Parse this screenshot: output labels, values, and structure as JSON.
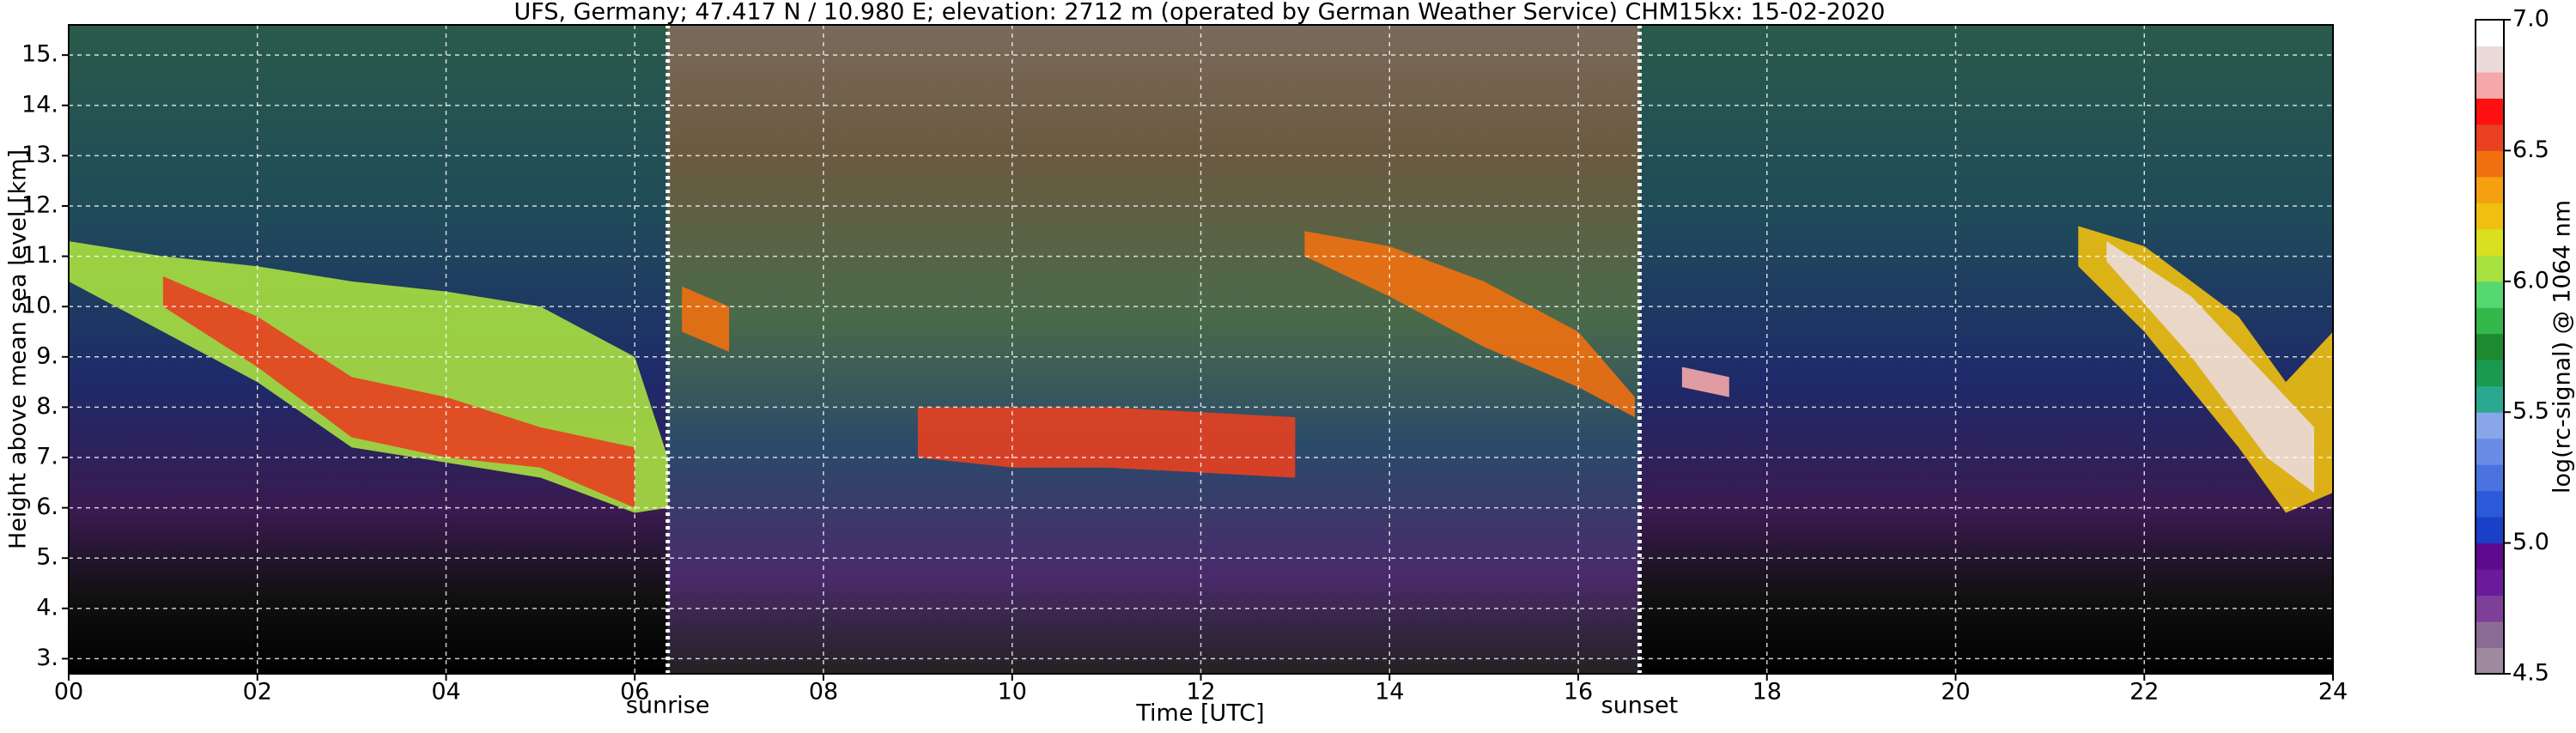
{
  "chart_data": {
    "type": "heatmap",
    "title": "UFS, Germany; 47.417 N / 10.980 E; elevation: 2712 m  (operated by German Weather Service)    CHM15kx: 15-02-2020",
    "xlabel": "Time [UTC]",
    "ylabel": "Height above mean sea level [km]",
    "colorbar_label": "log(rc-signal) @ 1064 nm",
    "xlim": [
      0,
      24
    ],
    "xticks": [
      {
        "value": 0,
        "label": "00"
      },
      {
        "value": 2,
        "label": "02"
      },
      {
        "value": 4,
        "label": "04"
      },
      {
        "value": 6,
        "label": "06"
      },
      {
        "value": 8,
        "label": "08"
      },
      10,
      12,
      14,
      16,
      18,
      20,
      22,
      24
    ],
    "ylim": [
      2.7,
      15.6
    ],
    "yticks": [
      {
        "value": 3,
        "label": "3."
      },
      {
        "value": 4,
        "label": "4."
      },
      {
        "value": 5,
        "label": "5."
      },
      {
        "value": 6,
        "label": "6."
      },
      {
        "value": 7,
        "label": "7."
      },
      {
        "value": 8,
        "label": "8."
      },
      {
        "value": 9,
        "label": "9."
      },
      {
        "value": 10,
        "label": "10."
      },
      {
        "value": 11,
        "label": "11."
      },
      {
        "value": 12,
        "label": "12."
      },
      {
        "value": 13,
        "label": "13."
      },
      {
        "value": 14,
        "label": "14."
      },
      {
        "value": 15,
        "label": "15."
      }
    ],
    "clim": [
      4.5,
      7.0
    ],
    "cticks": [
      4.5,
      {
        "value": 5,
        "label": "5.0"
      },
      5.5,
      {
        "value": 6,
        "label": "6.0"
      },
      6.5,
      {
        "value": 7,
        "label": "7.0"
      }
    ],
    "colors": [
      "#9e8a9e",
      "#8a6b94",
      "#7d3f98",
      "#6a1b9a",
      "#5e0a8e",
      "#1a3fc8",
      "#2a5ad8",
      "#4a72e0",
      "#6a8ce6",
      "#8aa6ea",
      "#2aa890",
      "#1a9a50",
      "#1e8a30",
      "#33b84a",
      "#55d870",
      "#a8e040",
      "#d8e020",
      "#f0c010",
      "#f5a010",
      "#f07010",
      "#e84020",
      "#ff1010",
      "#f5a8a8",
      "#eadada",
      "#ffffff"
    ],
    "grid": true,
    "annotations": [
      {
        "text": "sunrise",
        "x": 6.35
      },
      {
        "text": "sunset",
        "x": 16.65
      }
    ],
    "layers": [
      {
        "x": [
          0,
          1,
          2,
          3,
          4,
          5,
          6,
          6.35
        ],
        "top": [
          11.3,
          11.0,
          10.8,
          10.5,
          10.3,
          10.0,
          9.0,
          7.0
        ],
        "base": [
          10.5,
          9.5,
          8.5,
          7.2,
          6.9,
          6.6,
          5.9,
          6.0
        ],
        "value": 6.1
      },
      {
        "x": [
          1,
          2,
          3,
          4,
          5,
          6
        ],
        "top": [
          10.6,
          9.8,
          8.6,
          8.2,
          7.6,
          7.2
        ],
        "base": [
          10.0,
          8.8,
          7.4,
          7.0,
          6.8,
          6.0
        ],
        "value": 6.5
      },
      {
        "x": [
          6.5,
          7
        ],
        "top": [
          10.4,
          10.0
        ],
        "base": [
          9.5,
          9.1
        ],
        "value": 6.4
      },
      {
        "x": [
          9,
          10,
          11,
          12,
          13
        ],
        "top": [
          8.0,
          8.0,
          8.0,
          7.9,
          7.8
        ],
        "base": [
          7.0,
          6.8,
          6.8,
          6.7,
          6.6
        ],
        "value": 6.6
      },
      {
        "x": [
          13.1,
          14,
          15,
          16,
          16.6
        ],
        "top": [
          11.5,
          11.2,
          10.5,
          9.5,
          8.2
        ],
        "base": [
          11.0,
          10.2,
          9.2,
          8.4,
          7.8
        ],
        "value": 6.4
      },
      {
        "x": [
          17.1,
          17.6
        ],
        "top": [
          8.8,
          8.6
        ],
        "base": [
          8.4,
          8.2
        ],
        "value": 6.7
      },
      {
        "x": [
          21.3,
          22,
          23,
          23.5,
          24
        ],
        "top": [
          11.6,
          11.2,
          9.8,
          8.5,
          9.5
        ],
        "base": [
          10.8,
          9.5,
          7.2,
          5.9,
          6.3
        ],
        "value": 6.2
      },
      {
        "x": [
          21.6,
          22.5,
          23.3,
          23.8
        ],
        "top": [
          11.3,
          10.2,
          8.6,
          7.6
        ],
        "base": [
          10.9,
          9.0,
          7.0,
          6.3
        ],
        "value": 6.8
      }
    ]
  }
}
